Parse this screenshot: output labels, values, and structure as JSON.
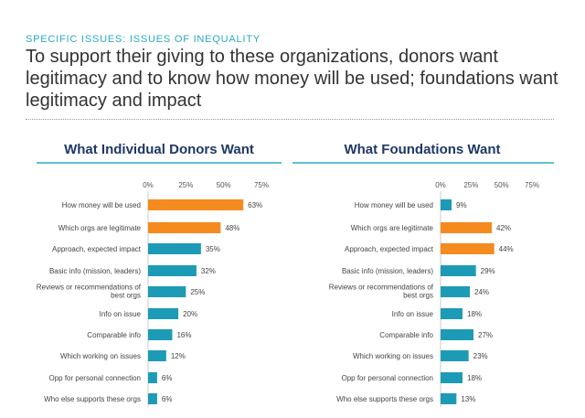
{
  "header": {
    "kicker": "SPECIFIC ISSUES: ISSUES OF INEQUALITY",
    "headline": "To support their giving to these organizations, donors want legitimacy and to know how money will be used; foundations want legitimacy and impact"
  },
  "colors": {
    "teal": "#1d9bb6",
    "orange": "#f58a1f",
    "title_rule": "#2aa9c6",
    "panel_title": "#1f3864"
  },
  "chart_data": [
    {
      "type": "bar",
      "orientation": "horizontal",
      "title": "What Individual Donors Want",
      "tick_labels": [
        "0%",
        "25%",
        "50%",
        "75%"
      ],
      "xlim": [
        0,
        75
      ],
      "categories": [
        "How money will be used",
        "Which orgs are legitimate",
        "Approach, expected impact",
        "Basic info (mission, leaders)",
        "Reviews or recommendations of best orgs",
        "Info on issue",
        "Comparable info",
        "Which working on issues",
        "Opp for personal connection",
        "Who else supports these orgs"
      ],
      "values": [
        63,
        48,
        35,
        32,
        25,
        20,
        16,
        12,
        6,
        6
      ],
      "value_labels": [
        "63%",
        "48%",
        "35%",
        "32%",
        "25%",
        "20%",
        "16%",
        "12%",
        "6%",
        "6%"
      ],
      "highlighted": [
        true,
        true,
        false,
        false,
        false,
        false,
        false,
        false,
        false,
        false
      ]
    },
    {
      "type": "bar",
      "orientation": "horizontal",
      "title": "What Foundations Want",
      "tick_labels": [
        "0%",
        "25%",
        "50%",
        "75%"
      ],
      "xlim": [
        0,
        75
      ],
      "categories": [
        "How money will be used",
        "Which orgs are legitimate",
        "Approach, expected impact",
        "Basic info (mission, leaders)",
        "Reviews or recommendations of best orgs",
        "Info on issue",
        "Comparable info",
        "Which working on issues",
        "Opp for personal connection",
        "Who else supports these orgs"
      ],
      "values": [
        9,
        42,
        44,
        29,
        24,
        18,
        27,
        23,
        18,
        13
      ],
      "value_labels": [
        "9%",
        "42%",
        "44%",
        "29%",
        "24%",
        "18%",
        "27%",
        "23%",
        "18%",
        "13%"
      ],
      "highlighted": [
        false,
        true,
        true,
        false,
        false,
        false,
        false,
        false,
        false,
        false
      ]
    }
  ]
}
